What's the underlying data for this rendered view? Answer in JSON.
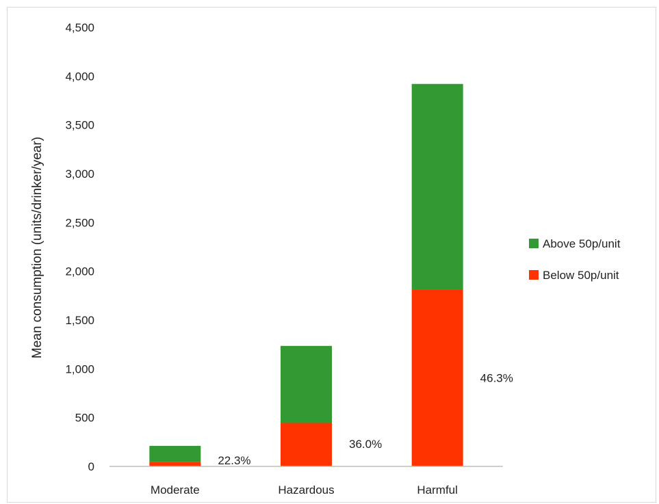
{
  "chart_data": {
    "type": "bar",
    "stacked": true,
    "categories": [
      "Moderate",
      "Hazardous",
      "Harmful"
    ],
    "series": [
      {
        "name": "Below 50p/unit",
        "color": "#ff3300",
        "values": [
          47,
          445,
          1815
        ]
      },
      {
        "name": "Above 50p/unit",
        "color": "#339933",
        "values": [
          163,
          790,
          2105
        ]
      }
    ],
    "percent_labels": [
      "22.3%",
      "36.0%",
      "46.3%"
    ],
    "ylabel": "Mean consumption (units/drinker/year)",
    "xlabel": "",
    "ylim": [
      0,
      4500
    ],
    "y_ticks": [
      0,
      500,
      1000,
      1500,
      2000,
      2500,
      3000,
      3500,
      4000,
      4500
    ],
    "y_tick_labels": [
      "0",
      "500",
      "1,000",
      "1,500",
      "2,000",
      "2,500",
      "3,000",
      "3,500",
      "4,000",
      "4,500"
    ],
    "gridlines": false,
    "legend_position": "right"
  }
}
